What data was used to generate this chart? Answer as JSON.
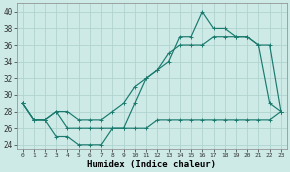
{
  "xlabel": "Humidex (Indice chaleur)",
  "background_color": "#cdeae7",
  "grid_color": "#b0d4d0",
  "line_color": "#1a7a6e",
  "xlim": [
    -0.5,
    23.5
  ],
  "ylim": [
    23.5,
    41
  ],
  "yticks": [
    24,
    26,
    28,
    30,
    32,
    34,
    36,
    38,
    40
  ],
  "xticks": [
    0,
    1,
    2,
    3,
    4,
    5,
    6,
    7,
    8,
    9,
    10,
    11,
    12,
    13,
    14,
    15,
    16,
    17,
    18,
    19,
    20,
    21,
    22,
    23
  ],
  "line1_x": [
    0,
    1,
    2,
    3,
    4,
    5,
    6,
    7,
    8,
    9,
    10,
    11,
    12,
    13,
    14,
    15,
    16,
    17,
    18,
    19,
    20,
    21,
    22,
    23
  ],
  "line1_y": [
    29,
    27,
    27,
    28,
    26,
    26,
    26,
    26,
    26,
    26,
    26,
    26,
    27,
    27,
    27,
    27,
    27,
    27,
    27,
    27,
    27,
    27,
    27,
    28
  ],
  "line2_x": [
    0,
    1,
    2,
    3,
    4,
    5,
    6,
    7,
    8,
    9,
    10,
    11,
    12,
    13,
    14,
    15,
    16,
    17,
    18,
    19,
    20,
    21,
    22,
    23
  ],
  "line2_y": [
    29,
    27,
    27,
    25,
    25,
    24,
    24,
    24,
    26,
    26,
    29,
    32,
    33,
    34,
    37,
    37,
    40,
    38,
    38,
    37,
    37,
    36,
    29,
    28
  ],
  "line3_x": [
    0,
    1,
    2,
    3,
    4,
    5,
    6,
    7,
    8,
    9,
    10,
    11,
    12,
    13,
    14,
    15,
    16,
    17,
    18,
    19,
    20,
    21,
    22,
    23
  ],
  "line3_y": [
    29,
    27,
    27,
    28,
    28,
    27,
    27,
    27,
    28,
    29,
    31,
    32,
    33,
    35,
    36,
    36,
    36,
    37,
    37,
    37,
    37,
    36,
    36,
    28
  ]
}
